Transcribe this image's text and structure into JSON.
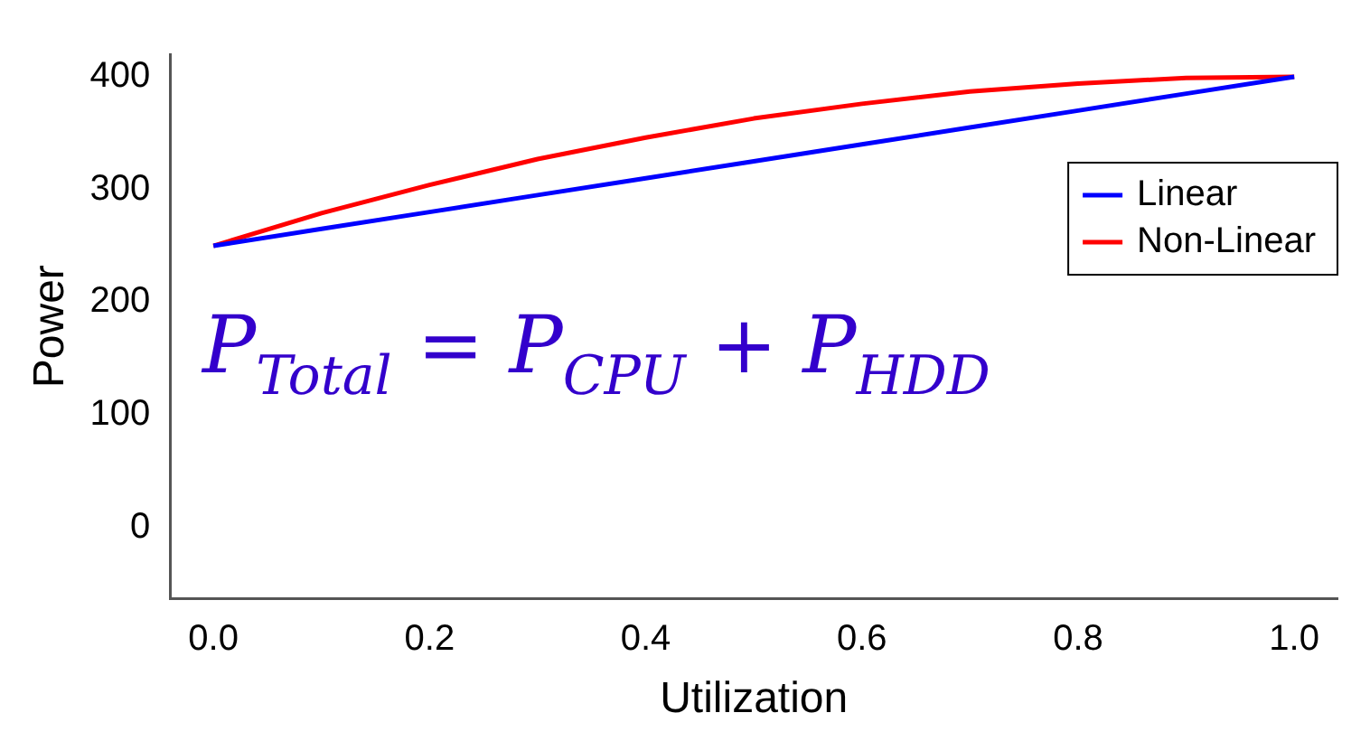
{
  "chart_data": {
    "type": "line",
    "xlabel": "Utilization",
    "ylabel": "Power",
    "x": [
      0,
      0.1,
      0.2,
      0.3,
      0.4,
      0.5,
      0.6,
      0.7,
      0.8,
      0.9,
      1.0
    ],
    "series": [
      {
        "name": "Linear",
        "color": "#0000ff",
        "values": [
          250,
          265,
          280,
          295,
          310,
          325,
          340,
          355,
          370,
          385,
          400
        ]
      },
      {
        "name": "Non-Linear",
        "color": "#ff0000",
        "values": [
          250,
          279,
          304,
          327,
          346,
          363,
          376,
          387,
          394,
          399,
          400
        ]
      }
    ],
    "xlim": [
      -0.04,
      1.04
    ],
    "xticks": [
      {
        "value": 0,
        "label": "0.0"
      },
      {
        "value": 0.2,
        "label": "0.2"
      },
      {
        "value": 0.4,
        "label": "0.4"
      },
      {
        "value": 0.6,
        "label": "0.6"
      },
      {
        "value": 0.8,
        "label": "0.8"
      },
      {
        "value": 1,
        "label": "1.0"
      }
    ],
    "ylim": [
      -63,
      420
    ],
    "yticks": [
      0,
      100,
      200,
      300,
      400
    ],
    "grid": false,
    "legend": "top right",
    "marker": "none",
    "line_style": "solid",
    "annotations": [
      "P$_{Total}$ = P$_{CPU}$ + P$_{HDD}$"
    ]
  }
}
